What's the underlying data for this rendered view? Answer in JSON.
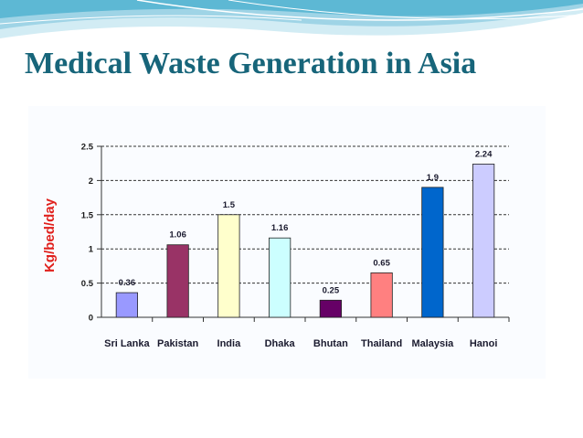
{
  "slide": {
    "title": "Medical Waste Generation in Asia",
    "title_color": "#17657a"
  },
  "chart_data": {
    "type": "bar",
    "title": "",
    "xlabel": "",
    "ylabel": "Kg/bed/day",
    "ylim": [
      0,
      2.5
    ],
    "yticks": [
      0,
      0.5,
      1,
      1.5,
      2,
      2.5
    ],
    "ytick_labels": [
      "0",
      "0.5",
      "1",
      "1.5",
      "2",
      "2.5"
    ],
    "grid": true,
    "categories": [
      "Sri Lanka",
      "Pakistan",
      "India",
      "Dhaka",
      "Bhutan",
      "Thailand",
      "Malaysia",
      "Hanoi"
    ],
    "values": [
      0.36,
      1.06,
      1.5,
      1.16,
      0.25,
      0.65,
      1.9,
      2.24
    ],
    "value_labels": [
      "0.36",
      "1.06",
      "1.5",
      "1.16",
      "0.25",
      "0.65",
      "1.9",
      "2.24"
    ],
    "colors": [
      "#9999ff",
      "#993366",
      "#ffffcc",
      "#ccffff",
      "#660066",
      "#ff8080",
      "#0066cc",
      "#ccccff"
    ]
  }
}
